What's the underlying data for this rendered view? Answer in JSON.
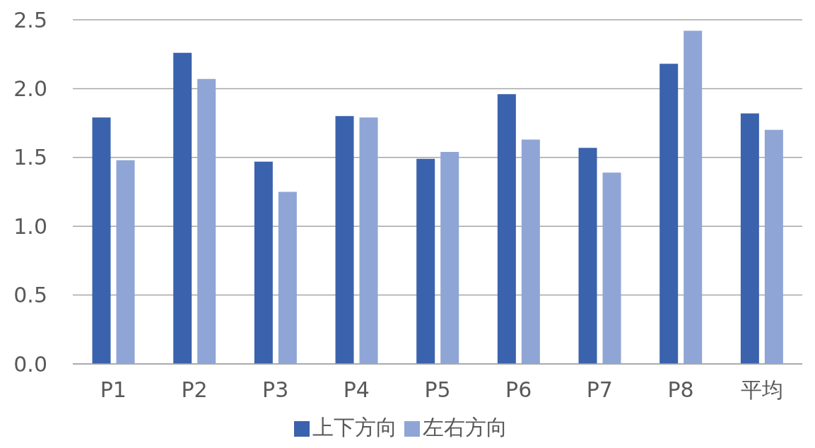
{
  "chart_data": {
    "type": "bar",
    "categories": [
      "P1",
      "P2",
      "P3",
      "P4",
      "P5",
      "P6",
      "P7",
      "P8",
      "平均"
    ],
    "series": [
      {
        "name": "上下方向",
        "color": "#3a62ad",
        "values": [
          1.79,
          2.26,
          1.47,
          1.8,
          1.49,
          1.96,
          1.57,
          2.18,
          1.82
        ]
      },
      {
        "name": "左右方向",
        "color": "#8fa5d6",
        "values": [
          1.48,
          2.07,
          1.25,
          1.79,
          1.54,
          1.63,
          1.39,
          2.42,
          1.7
        ]
      }
    ],
    "ylim": [
      0,
      2.5
    ],
    "yticks": [
      {
        "value": 0,
        "label": "0.0"
      },
      {
        "value": 0.5,
        "label": "0.5"
      },
      {
        "value": 1,
        "label": "1.0"
      },
      {
        "value": 1.5,
        "label": "1.5"
      },
      {
        "value": 2,
        "label": "2.0"
      },
      {
        "value": 2.5,
        "label": "2.5"
      }
    ],
    "grid": "y",
    "legend": "bottom"
  }
}
